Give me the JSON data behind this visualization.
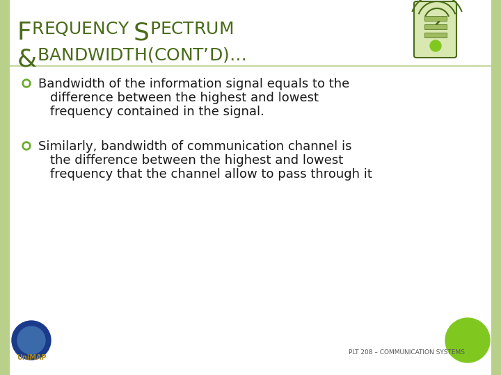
{
  "title_line1": "FREQUENCY SPECTRUM",
  "title_line2": "&BANDWIDTH(CONT’D)…",
  "title_color": "#4a6b1a",
  "bg_color": "#ffffff",
  "border_color": "#b8d08a",
  "bullet_color": "#6aaa2a",
  "text_color": "#1a1a1a",
  "bullet1_line1": "Bandwidth of the information signal equals to the",
  "bullet1_line2": "difference between the highest and lowest",
  "bullet1_line3": "frequency contained in the signal.",
  "bullet2_line1": "Similarly, bandwidth of communication channel is",
  "bullet2_line2": "the difference between the highest and lowest",
  "bullet2_line3": "frequency that the channel allow to pass through it",
  "footer_text": "PLT 208 – COMMUNICATION SYSTEMS",
  "footer_color": "#555555",
  "green_dot_color": "#80c820",
  "left_border_color": "#b8d08a",
  "right_border_color": "#b8d08a"
}
